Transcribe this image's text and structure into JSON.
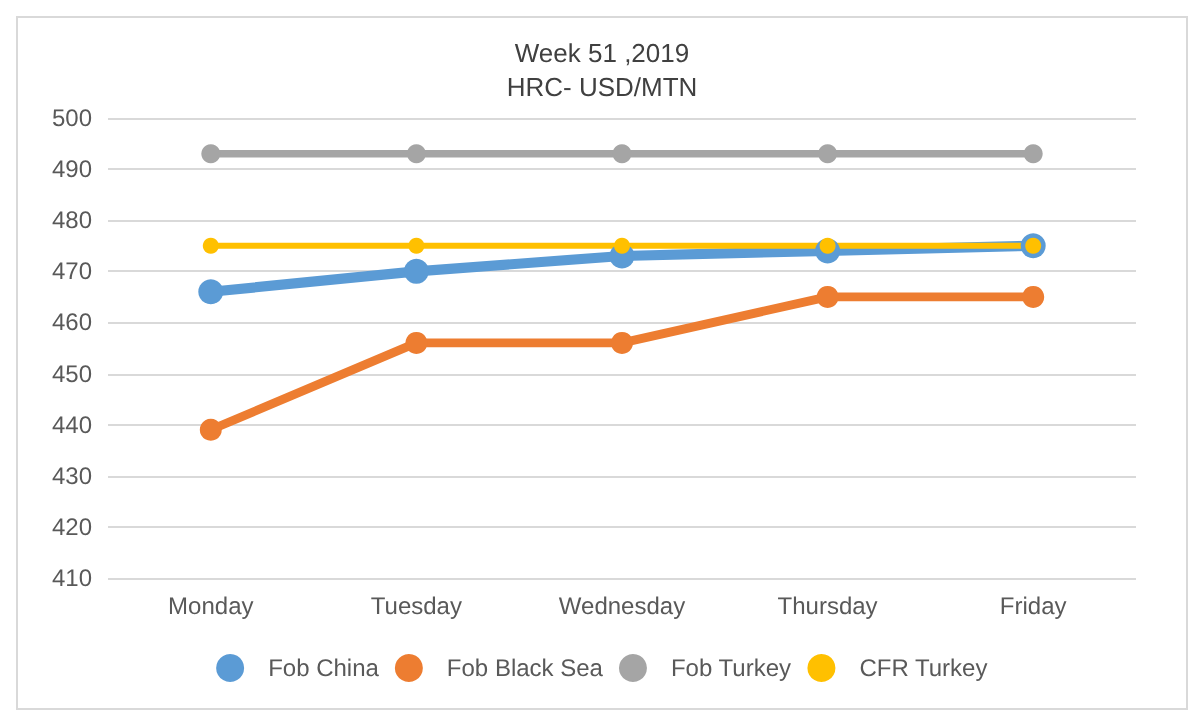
{
  "chart_data": {
    "type": "line",
    "title": "Week 51 ,2019",
    "subtitle": "HRC- USD/MTN",
    "categories": [
      "Monday",
      "Tuesday",
      "Wednesday",
      "Thursday",
      "Friday"
    ],
    "series": [
      {
        "name": "Fob China",
        "color": "#5b9bd5",
        "values": [
          466,
          470,
          473,
          474,
          475
        ]
      },
      {
        "name": "Fob Black Sea",
        "color": "#ed7d31",
        "values": [
          439,
          456,
          456,
          465,
          465
        ]
      },
      {
        "name": "Fob Turkey",
        "color": "#a5a5a5",
        "values": [
          493,
          493,
          493,
          493,
          493
        ]
      },
      {
        "name": "CFR Turkey",
        "color": "#ffc000",
        "values": [
          475,
          475,
          475,
          475,
          475
        ]
      }
    ],
    "ylim": [
      410,
      500
    ],
    "yticks": [
      410,
      420,
      430,
      440,
      450,
      460,
      470,
      480,
      490,
      500
    ],
    "grid": "y",
    "legend": "bottom",
    "marker": "circle",
    "line_style": "solid"
  }
}
